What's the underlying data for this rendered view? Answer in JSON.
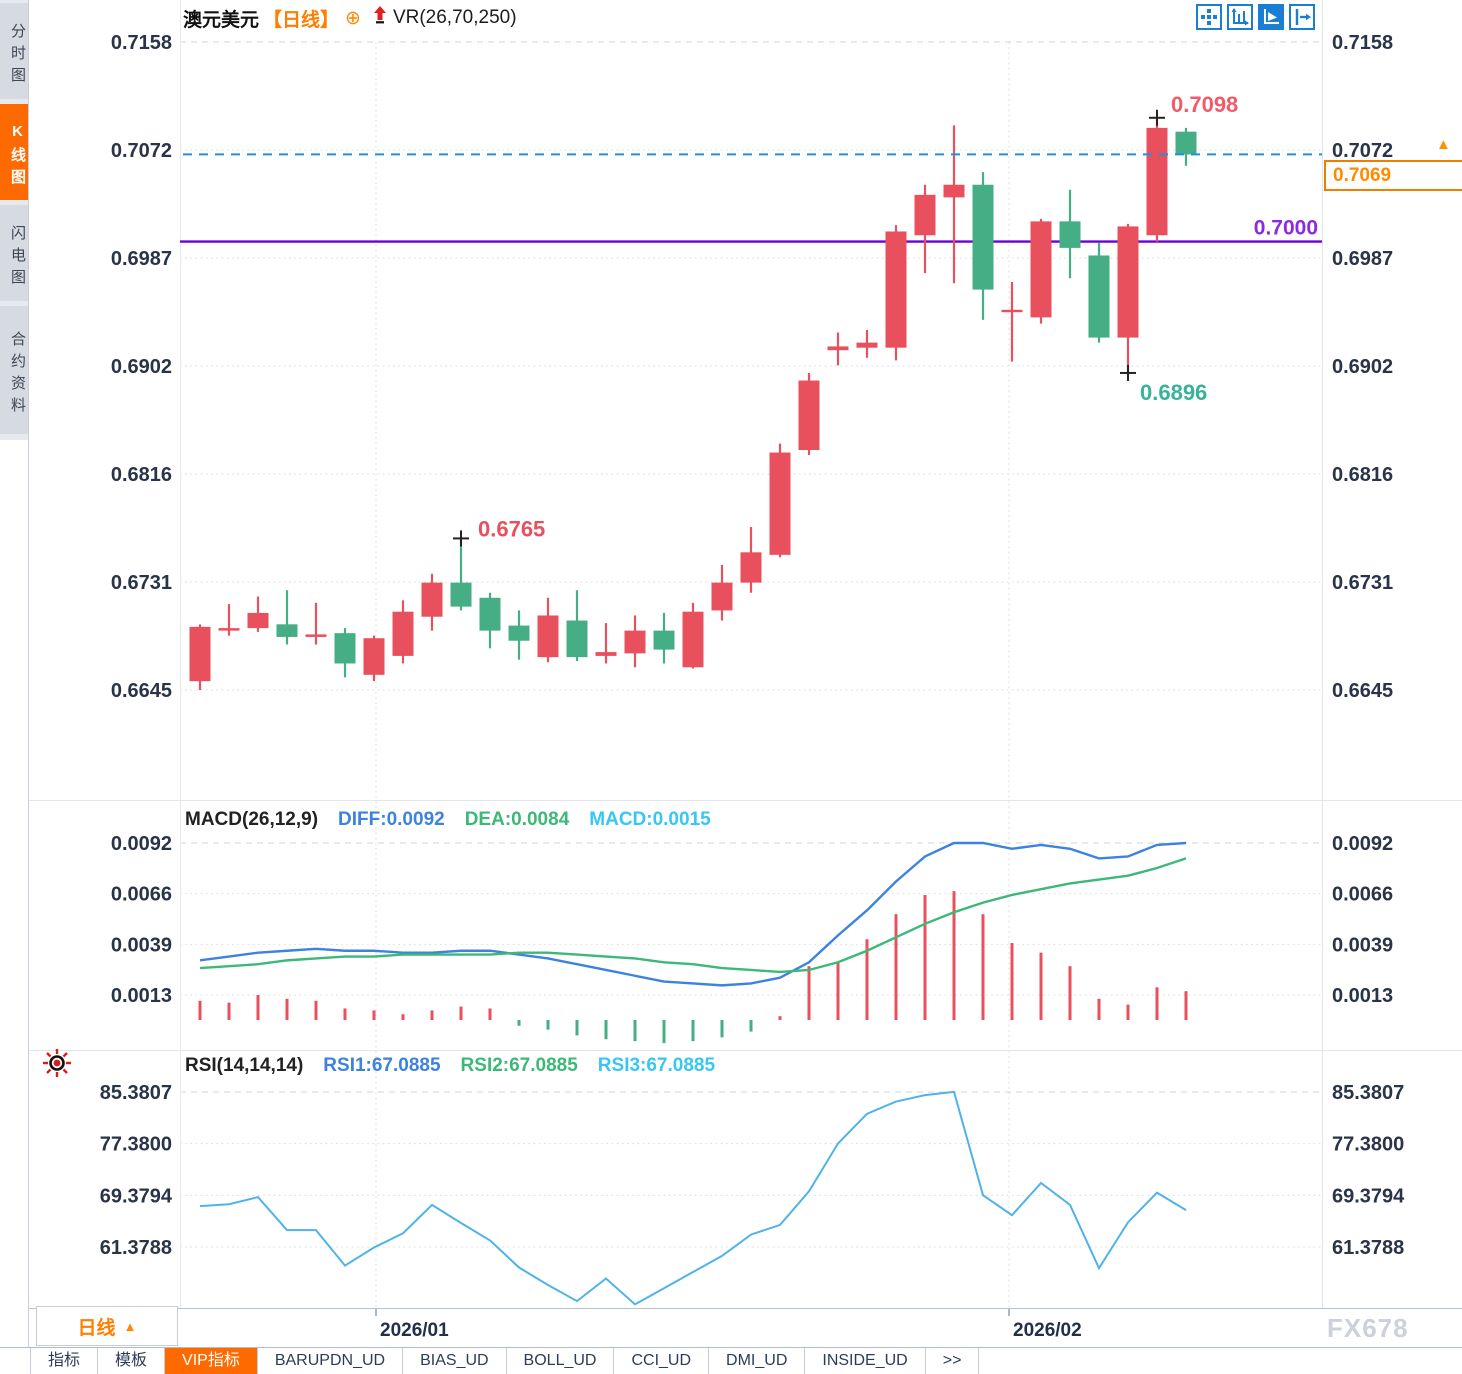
{
  "header": {
    "symbol": "澳元美元",
    "period_tag": "【日线】",
    "overlay_indicator": "VR(26,70,250)"
  },
  "sidebar": {
    "tabs": [
      {
        "name": "intraday-chart",
        "label": "分时图",
        "active": false
      },
      {
        "name": "kline-chart",
        "label": "K线图",
        "active": true
      },
      {
        "name": "lightning-chart",
        "label": "闪电图",
        "active": false
      },
      {
        "name": "contract-info",
        "label": "合约资料",
        "active": false
      }
    ]
  },
  "toolbar": {
    "icons": [
      "move-crosshair-icon",
      "axis-scale-icon",
      "play-axis-icon",
      "exit-pane-icon"
    ],
    "active_icon": "play-axis-icon"
  },
  "price_panel": {
    "current_price": "0.7069",
    "annotations": {
      "swing_high": "0.6765",
      "high": "0.7098",
      "low": "0.6896",
      "hline_label": "0.7000"
    }
  },
  "macd_header": {
    "name": "MACD(26,12,9)",
    "diff": "DIFF:0.0092",
    "dea": "DEA:0.0084",
    "macd": "MACD:0.0015"
  },
  "rsi_header": {
    "name": "RSI(14,14,14)",
    "rsi1": "RSI1:67.0885",
    "rsi2": "RSI2:67.0885",
    "rsi3": "RSI3:67.0885"
  },
  "bottom": {
    "period_selector": "日线",
    "x_labels": [
      "2026/01",
      "2026/02"
    ],
    "tabs": [
      "指标",
      "模板",
      "VIP指标",
      "BARUPDN_UD",
      "BIAS_UD",
      "BOLL_UD",
      "CCI_UD",
      "DMI_UD",
      "INSIDE_UD",
      ">>"
    ],
    "active_tab": "VIP指标"
  },
  "watermark": "FX678",
  "colors": {
    "up": "#e9505e",
    "down": "#45ae85",
    "diff_line": "#3c82e0",
    "dea_line": "#3cb878",
    "rsi_line": "#4fb3e8",
    "dashed_price_line": "#1f8fe8",
    "purple_line": "#6a00d6",
    "purple_label": "#8b2be0",
    "high_label": "#f25a68",
    "low_label": "#38b29a",
    "swing_label": "#e9505e",
    "axis_text": "#2a3448",
    "grid": "#dcdcdc",
    "accent_orange": "#ff6a00"
  },
  "chart_data": [
    {
      "type": "candlestick",
      "title": "澳元美元 日线 (AUD/USD daily)",
      "price_axis_labels": [
        "0.7158",
        "0.7072",
        "0.6987",
        "0.6902",
        "0.6816",
        "0.6731",
        "0.6645"
      ],
      "x_tick_labels": [
        "2026/01",
        "2026/02"
      ],
      "current_price": 0.7069,
      "horizontal_line": 0.7,
      "marker_candles": {
        "swing_high": 9,
        "low": 32,
        "high": 33
      },
      "candles_ohlc": [
        [
          0.6652,
          0.6697,
          0.6645,
          0.6695
        ],
        [
          0.6692,
          0.6713,
          0.6688,
          0.6694
        ],
        [
          0.6694,
          0.6719,
          0.6691,
          0.6706
        ],
        [
          0.6697,
          0.6724,
          0.6681,
          0.6687
        ],
        [
          0.6687,
          0.6714,
          0.6681,
          0.6689
        ],
        [
          0.669,
          0.6694,
          0.6655,
          0.6666
        ],
        [
          0.6657,
          0.6688,
          0.6652,
          0.6686
        ],
        [
          0.6672,
          0.6716,
          0.6666,
          0.6707
        ],
        [
          0.6703,
          0.6737,
          0.6692,
          0.673
        ],
        [
          0.673,
          0.6765,
          0.6708,
          0.6711
        ],
        [
          0.6718,
          0.6722,
          0.6678,
          0.6692
        ],
        [
          0.6696,
          0.6708,
          0.6669,
          0.6684
        ],
        [
          0.6671,
          0.6718,
          0.6667,
          0.6704
        ],
        [
          0.67,
          0.6724,
          0.6668,
          0.6671
        ],
        [
          0.6672,
          0.6698,
          0.6666,
          0.6675
        ],
        [
          0.6674,
          0.6704,
          0.6663,
          0.6692
        ],
        [
          0.6692,
          0.6706,
          0.6666,
          0.6677
        ],
        [
          0.6663,
          0.6714,
          0.6662,
          0.6707
        ],
        [
          0.6708,
          0.6744,
          0.67,
          0.673
        ],
        [
          0.673,
          0.6774,
          0.6722,
          0.6754
        ],
        [
          0.6752,
          0.684,
          0.675,
          0.6833
        ],
        [
          0.6835,
          0.6896,
          0.6831,
          0.689
        ],
        [
          0.6914,
          0.6928,
          0.6902,
          0.6917
        ],
        [
          0.6916,
          0.693,
          0.6908,
          0.692
        ],
        [
          0.6916,
          0.7013,
          0.6906,
          0.7008
        ],
        [
          0.7005,
          0.7045,
          0.6975,
          0.7037
        ],
        [
          0.7035,
          0.7092,
          0.6967,
          0.7045
        ],
        [
          0.7045,
          0.7055,
          0.6938,
          0.6962
        ],
        [
          0.6946,
          0.6968,
          0.6905,
          0.6946
        ],
        [
          0.694,
          0.7018,
          0.6935,
          0.7016
        ],
        [
          0.7016,
          0.7041,
          0.6971,
          0.6995
        ],
        [
          0.6989,
          0.6999,
          0.692,
          0.6924
        ],
        [
          0.6924,
          0.7014,
          0.6896,
          0.7012
        ],
        [
          0.7005,
          0.7098,
          0.7,
          0.709
        ],
        [
          0.7087,
          0.709,
          0.706,
          0.7069
        ]
      ]
    },
    {
      "type": "line",
      "title": "MACD(26,12,9)",
      "axis_labels": [
        "0.0092",
        "0.0066",
        "0.0039",
        "0.0013"
      ],
      "diff": [
        0.0031,
        0.0033,
        0.0035,
        0.0036,
        0.0037,
        0.0036,
        0.0036,
        0.0035,
        0.0035,
        0.0036,
        0.0036,
        0.0034,
        0.0032,
        0.0029,
        0.0026,
        0.0023,
        0.002,
        0.0019,
        0.0018,
        0.0019,
        0.0022,
        0.003,
        0.0044,
        0.0057,
        0.0072,
        0.0085,
        0.0092,
        0.0092,
        0.0089,
        0.0091,
        0.0089,
        0.0084,
        0.0085,
        0.0091,
        0.0092
      ],
      "dea": [
        0.0027,
        0.0028,
        0.0029,
        0.0031,
        0.0032,
        0.0033,
        0.0033,
        0.0034,
        0.0034,
        0.0034,
        0.0034,
        0.0035,
        0.0035,
        0.0034,
        0.0033,
        0.0032,
        0.003,
        0.0029,
        0.0027,
        0.0026,
        0.0025,
        0.0026,
        0.003,
        0.0036,
        0.0043,
        0.005,
        0.0056,
        0.0061,
        0.0065,
        0.0068,
        0.0071,
        0.0073,
        0.0075,
        0.0079,
        0.0084
      ],
      "histogram": [
        0.001,
        0.0009,
        0.0013,
        0.0011,
        0.001,
        0.0006,
        0.0005,
        0.0003,
        0.0005,
        0.0007,
        0.0006,
        -0.0003,
        -0.0005,
        -0.0008,
        -0.001,
        -0.0011,
        -0.0012,
        -0.0011,
        -0.0009,
        -0.0006,
        0.0002,
        0.0028,
        0.003,
        0.0042,
        0.0055,
        0.0065,
        0.0067,
        0.0055,
        0.004,
        0.0035,
        0.0028,
        0.0011,
        0.0008,
        0.0017,
        0.0015
      ]
    },
    {
      "type": "line",
      "title": "RSI(14,14,14)",
      "axis_labels": [
        "85.3807",
        "77.3800",
        "69.3794",
        "61.3788"
      ],
      "rsi": [
        67.7,
        68.0,
        69.1,
        64.0,
        64.0,
        58.5,
        61.3,
        63.5,
        67.9,
        65.1,
        62.4,
        58.2,
        55.5,
        53.0,
        56.5,
        52.5,
        55.0,
        57.5,
        60.0,
        63.3,
        64.8,
        70.0,
        77.4,
        82.0,
        83.9,
        84.9,
        85.4,
        69.4,
        66.3,
        71.3,
        67.9,
        58.1,
        65.2,
        69.8,
        67.0885
      ]
    }
  ]
}
